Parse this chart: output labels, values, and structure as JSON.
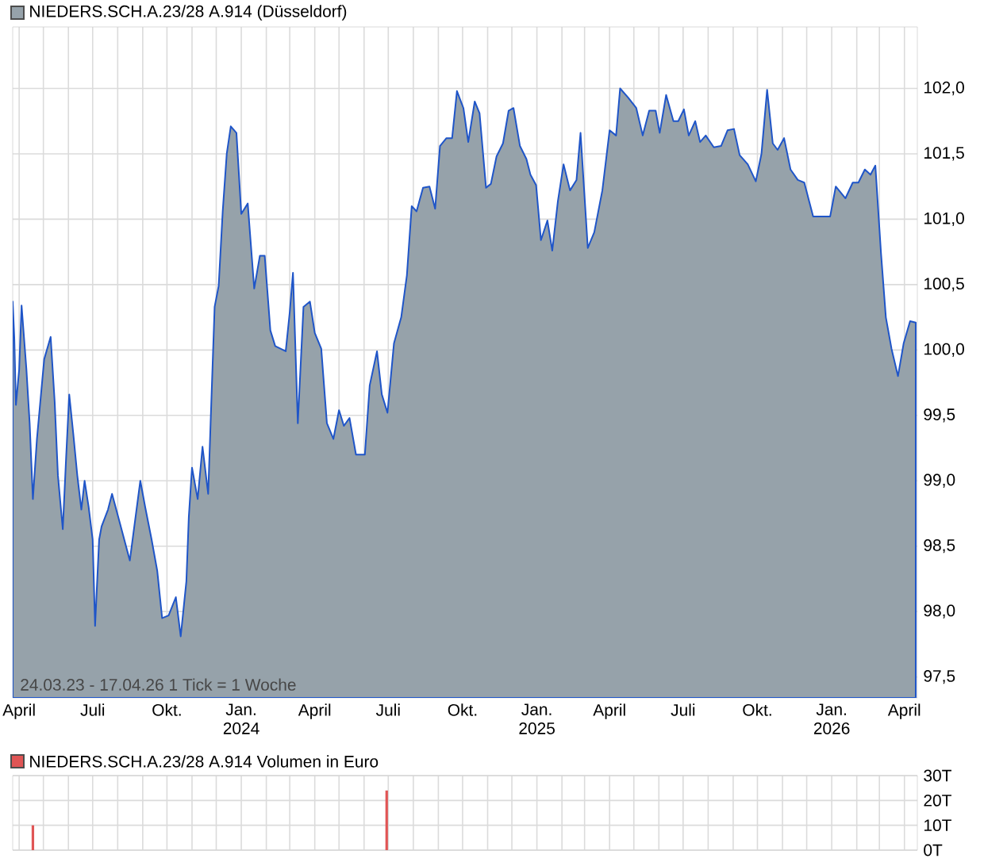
{
  "chart_data": [
    {
      "type": "area",
      "xlim": [
        "2023-03-24",
        "2026-04-17"
      ],
      "ylim": [
        97.34,
        102.47
      ],
      "yticks": [
        {
          "value": 97.5,
          "label": "97,5"
        },
        {
          "value": 98.0,
          "label": "98,0"
        },
        {
          "value": 98.5,
          "label": "98,5"
        },
        {
          "value": 99.0,
          "label": "99,0"
        },
        {
          "value": 99.5,
          "label": "99,5"
        },
        {
          "value": 100.0,
          "label": "100,0"
        },
        {
          "value": 100.5,
          "label": "100,5"
        },
        {
          "value": 101.0,
          "label": "101,0"
        },
        {
          "value": 101.5,
          "label": "101,5"
        },
        {
          "value": 102.0,
          "label": "102,0"
        }
      ],
      "xticks": [
        {
          "value": "2023-04-01",
          "label": "April"
        },
        {
          "value": "2023-05-01",
          "label": null
        },
        {
          "value": "2023-06-01",
          "label": null
        },
        {
          "value": "2023-07-01",
          "label": "Juli"
        },
        {
          "value": "2023-08-01",
          "label": null
        },
        {
          "value": "2023-09-01",
          "label": null
        },
        {
          "value": "2023-10-01",
          "label": "Okt."
        },
        {
          "value": "2023-11-01",
          "label": null
        },
        {
          "value": "2023-12-01",
          "label": null
        },
        {
          "value": "2024-01-01",
          "label": "Jan. 2024"
        },
        {
          "value": "2024-02-01",
          "label": null
        },
        {
          "value": "2024-03-01",
          "label": null
        },
        {
          "value": "2024-04-01",
          "label": "April"
        },
        {
          "value": "2024-05-01",
          "label": null
        },
        {
          "value": "2024-06-01",
          "label": null
        },
        {
          "value": "2024-07-01",
          "label": "Juli"
        },
        {
          "value": "2024-08-01",
          "label": null
        },
        {
          "value": "2024-09-01",
          "label": null
        },
        {
          "value": "2024-10-01",
          "label": "Okt."
        },
        {
          "value": "2024-11-01",
          "label": null
        },
        {
          "value": "2024-12-01",
          "label": null
        },
        {
          "value": "2025-01-01",
          "label": "Jan. 2025"
        },
        {
          "value": "2025-02-01",
          "label": null
        },
        {
          "value": "2025-03-01",
          "label": null
        },
        {
          "value": "2025-04-01",
          "label": "April"
        },
        {
          "value": "2025-05-01",
          "label": null
        },
        {
          "value": "2025-06-01",
          "label": null
        },
        {
          "value": "2025-07-01",
          "label": "Juli"
        },
        {
          "value": "2025-08-01",
          "label": null
        },
        {
          "value": "2025-09-01",
          "label": null
        },
        {
          "value": "2025-10-01",
          "label": "Okt."
        },
        {
          "value": "2025-11-01",
          "label": null
        },
        {
          "value": "2025-12-01",
          "label": null
        },
        {
          "value": "2026-01-01",
          "label": "Jan. 2026"
        },
        {
          "value": "2026-02-01",
          "label": null
        },
        {
          "value": "2026-03-01",
          "label": null
        },
        {
          "value": "2026-04-01",
          "label": "April"
        }
      ],
      "grid": true,
      "legend": "top left",
      "annotations": [
        "24.03.23 - 17.04.26   1 Tick = 1 Woche"
      ],
      "x": [
        "2023-03-24",
        "2023-03-26",
        "2023-03-28",
        "2023-04-01",
        "2023-04-04",
        "2023-04-10",
        "2023-04-14",
        "2023-04-18",
        "2023-04-23",
        "2023-05-02",
        "2023-05-10",
        "2023-05-15",
        "2023-05-19",
        "2023-05-25",
        "2023-05-29",
        "2023-06-02",
        "2023-06-07",
        "2023-06-12",
        "2023-06-17",
        "2023-06-21",
        "2023-06-26",
        "2023-07-01",
        "2023-07-04",
        "2023-07-09",
        "2023-07-12",
        "2023-07-20",
        "2023-07-25",
        "2023-08-04",
        "2023-08-16",
        "2023-08-29",
        "2023-09-04",
        "2023-09-12",
        "2023-09-19",
        "2023-09-25",
        "2023-10-03",
        "2023-10-12",
        "2023-10-18",
        "2023-10-25",
        "2023-10-28",
        "2023-11-01",
        "2023-11-08",
        "2023-11-14",
        "2023-11-21",
        "2023-11-24",
        "2023-11-29",
        "2023-12-04",
        "2023-12-09",
        "2023-12-14",
        "2023-12-19",
        "2023-12-26",
        "2024-01-01",
        "2024-01-09",
        "2024-01-17",
        "2024-01-24",
        "2024-01-30",
        "2024-02-06",
        "2024-02-12",
        "2024-02-25",
        "2024-03-01",
        "2024-03-05",
        "2024-03-11",
        "2024-03-18",
        "2024-03-26",
        "2024-04-01",
        "2024-04-09",
        "2024-04-16",
        "2024-04-24",
        "2024-05-01",
        "2024-05-07",
        "2024-05-14",
        "2024-05-22",
        "2024-06-02",
        "2024-06-08",
        "2024-06-17",
        "2024-06-23",
        "2024-06-30",
        "2024-07-08",
        "2024-07-17",
        "2024-07-24",
        "2024-07-30",
        "2024-08-05",
        "2024-08-13",
        "2024-08-21",
        "2024-08-28",
        "2024-09-03",
        "2024-09-11",
        "2024-09-18",
        "2024-09-24",
        "2024-10-02",
        "2024-10-08",
        "2024-10-16",
        "2024-10-22",
        "2024-10-30",
        "2024-11-05",
        "2024-11-12",
        "2024-11-20",
        "2024-11-27",
        "2024-12-03",
        "2024-12-11",
        "2024-12-19",
        "2024-12-24",
        "2024-12-31",
        "2025-01-06",
        "2025-01-14",
        "2025-01-20",
        "2025-01-27",
        "2025-02-03",
        "2025-02-11",
        "2025-02-19",
        "2025-02-24",
        "2025-03-05",
        "2025-03-13",
        "2025-03-23",
        "2025-04-01",
        "2025-04-09",
        "2025-04-14",
        "2025-04-24",
        "2025-05-04",
        "2025-05-12",
        "2025-05-20",
        "2025-05-28",
        "2025-06-02",
        "2025-06-10",
        "2025-06-19",
        "2025-06-25",
        "2025-07-02",
        "2025-07-08",
        "2025-07-16",
        "2025-07-22",
        "2025-07-29",
        "2025-08-08",
        "2025-08-17",
        "2025-08-25",
        "2025-09-02",
        "2025-09-09",
        "2025-09-19",
        "2025-09-29",
        "2025-10-06",
        "2025-10-13",
        "2025-10-20",
        "2025-10-26",
        "2025-11-03",
        "2025-11-11",
        "2025-11-20",
        "2025-11-28",
        "2025-12-09",
        "2025-12-21",
        "2025-12-30",
        "2026-01-06",
        "2026-01-18",
        "2026-01-27",
        "2026-02-03",
        "2026-02-11",
        "2026-02-18",
        "2026-02-24",
        "2026-03-03",
        "2026-03-09",
        "2026-03-16",
        "2026-03-24",
        "2026-03-31",
        "2026-04-08",
        "2026-04-15"
      ],
      "series": [
        {
          "name": "NIEDERS.SCH.A.23/28 A.914 (Düsseldorf)",
          "color": "#96a2aa",
          "values": [
            100.37,
            100.09,
            99.58,
            99.85,
            100.34,
            99.85,
            99.44,
            98.86,
            99.32,
            99.93,
            100.1,
            99.6,
            99.04,
            98.63,
            99.16,
            99.66,
            99.36,
            99.04,
            98.78,
            99.0,
            98.8,
            98.55,
            97.89,
            98.55,
            98.65,
            98.78,
            98.9,
            98.67,
            98.39,
            99.0,
            98.8,
            98.55,
            98.31,
            97.95,
            97.97,
            98.11,
            97.81,
            98.23,
            98.72,
            99.1,
            98.86,
            99.26,
            98.9,
            99.44,
            100.33,
            100.49,
            101.06,
            101.5,
            101.71,
            101.66,
            101.04,
            101.12,
            100.47,
            100.72,
            100.72,
            100.15,
            100.03,
            99.99,
            100.29,
            100.59,
            99.44,
            100.33,
            100.37,
            100.13,
            100.01,
            99.44,
            99.32,
            99.54,
            99.42,
            99.48,
            99.2,
            99.2,
            99.73,
            99.99,
            99.66,
            99.52,
            100.05,
            100.25,
            100.57,
            101.1,
            101.06,
            101.24,
            101.25,
            101.08,
            101.56,
            101.62,
            101.62,
            101.98,
            101.85,
            101.59,
            101.9,
            101.81,
            101.24,
            101.27,
            101.48,
            101.58,
            101.83,
            101.85,
            101.56,
            101.46,
            101.34,
            101.26,
            100.84,
            100.99,
            100.76,
            101.14,
            101.42,
            101.22,
            101.3,
            101.66,
            100.78,
            100.9,
            101.22,
            101.68,
            101.64,
            102.0,
            101.93,
            101.85,
            101.64,
            101.83,
            101.83,
            101.66,
            101.95,
            101.75,
            101.75,
            101.84,
            101.64,
            101.75,
            101.59,
            101.64,
            101.55,
            101.56,
            101.68,
            101.69,
            101.49,
            101.42,
            101.29,
            101.5,
            101.99,
            101.58,
            101.53,
            101.62,
            101.38,
            101.3,
            101.28,
            101.02,
            101.02,
            101.02,
            101.25,
            101.16,
            101.28,
            101.28,
            101.38,
            101.34,
            101.41,
            100.74,
            100.25,
            100.01,
            99.8,
            100.05,
            100.22,
            100.21
          ]
        }
      ]
    },
    {
      "type": "bar",
      "xlim": [
        "2023-03-24",
        "2026-04-17"
      ],
      "ylim": [
        0,
        30
      ],
      "yticks": [
        {
          "value": 0,
          "label": "0T"
        },
        {
          "value": 10,
          "label": "10T"
        },
        {
          "value": 20,
          "label": "20T"
        },
        {
          "value": 30,
          "label": "30T"
        }
      ],
      "xticks": [
        {
          "value": "2023-04-01",
          "label": null
        },
        {
          "value": "2023-05-01",
          "label": null
        },
        {
          "value": "2023-06-01",
          "label": null
        },
        {
          "value": "2023-07-01",
          "label": null
        },
        {
          "value": "2023-08-01",
          "label": null
        },
        {
          "value": "2023-09-01",
          "label": null
        },
        {
          "value": "2023-10-01",
          "label": null
        },
        {
          "value": "2023-11-01",
          "label": null
        },
        {
          "value": "2023-12-01",
          "label": null
        },
        {
          "value": "2024-01-01",
          "label": null
        },
        {
          "value": "2024-02-01",
          "label": null
        },
        {
          "value": "2024-03-01",
          "label": null
        },
        {
          "value": "2024-04-01",
          "label": null
        },
        {
          "value": "2024-05-01",
          "label": null
        },
        {
          "value": "2024-06-01",
          "label": null
        },
        {
          "value": "2024-07-01",
          "label": null
        },
        {
          "value": "2024-08-01",
          "label": null
        },
        {
          "value": "2024-09-01",
          "label": null
        },
        {
          "value": "2024-10-01",
          "label": null
        },
        {
          "value": "2024-11-01",
          "label": null
        },
        {
          "value": "2024-12-01",
          "label": null
        },
        {
          "value": "2025-01-01",
          "label": null
        },
        {
          "value": "2025-02-01",
          "label": null
        },
        {
          "value": "2025-03-01",
          "label": null
        },
        {
          "value": "2025-04-01",
          "label": null
        },
        {
          "value": "2025-05-01",
          "label": null
        },
        {
          "value": "2025-06-01",
          "label": null
        },
        {
          "value": "2025-07-01",
          "label": null
        },
        {
          "value": "2025-08-01",
          "label": null
        },
        {
          "value": "2025-09-01",
          "label": null
        },
        {
          "value": "2025-10-01",
          "label": null
        },
        {
          "value": "2025-11-01",
          "label": null
        },
        {
          "value": "2025-12-01",
          "label": null
        },
        {
          "value": "2026-01-01",
          "label": null
        },
        {
          "value": "2026-02-01",
          "label": null
        },
        {
          "value": "2026-03-01",
          "label": null
        },
        {
          "value": "2026-04-01",
          "label": null
        }
      ],
      "grid": true,
      "legend": "top left",
      "tick_labels": "y",
      "x": [
        "2023-04-18",
        "2024-06-29"
      ],
      "series": [
        {
          "name": "NIEDERS.SCH.A.23/28 A.914 Volumen in Euro",
          "color": "#e05555",
          "values": [
            10,
            24
          ]
        }
      ]
    }
  ]
}
